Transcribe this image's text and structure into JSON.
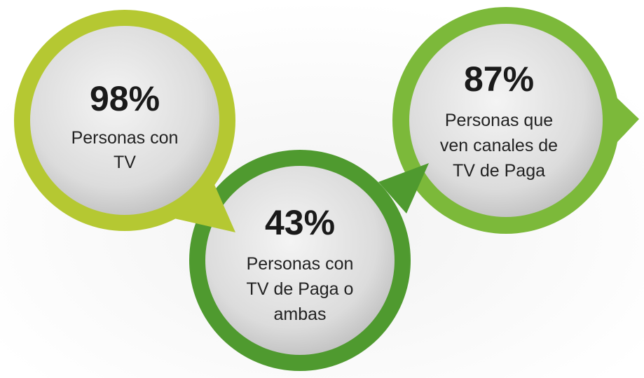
{
  "items": [
    {
      "value": "98%",
      "lines": [
        "Personas con",
        "TV"
      ]
    },
    {
      "value": "43%",
      "lines": [
        "Personas con",
        "TV de Paga o",
        "ambas"
      ]
    },
    {
      "value": "87%",
      "lines": [
        "Personas que",
        "ven canales de",
        "TV de Paga"
      ]
    }
  ]
}
